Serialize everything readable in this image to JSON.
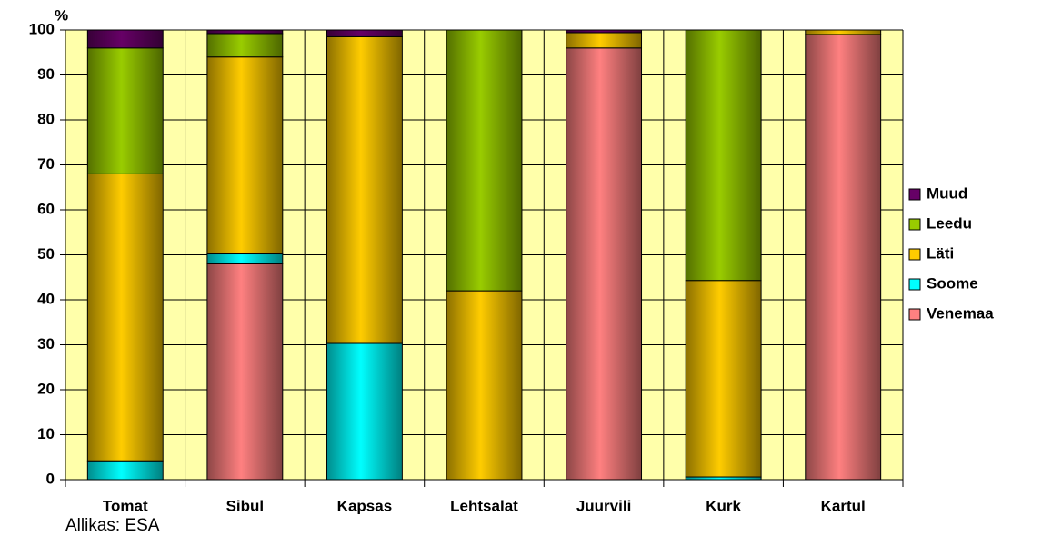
{
  "chart_data": {
    "type": "stacked_bar",
    "y_axis_label": "%",
    "source": "Allikas: ESA",
    "categories": [
      "Tomat",
      "Sibul",
      "Kapsas",
      "Lehtsalat",
      "Juurvili",
      "Kurk",
      "Kartul"
    ],
    "series": [
      {
        "name": "Venemaa",
        "color": "#ff8080",
        "values": [
          0,
          48,
          0,
          0,
          96,
          0,
          99
        ]
      },
      {
        "name": "Soome",
        "color": "#00ffff",
        "values": [
          4.2,
          2.2,
          30.3,
          0,
          0,
          0.6,
          0
        ]
      },
      {
        "name": "Läti",
        "color": "#ffcc00",
        "values": [
          63.8,
          43.8,
          68.2,
          42,
          3.4,
          43.7,
          1
        ]
      },
      {
        "name": "Leedu",
        "color": "#99cc00",
        "values": [
          28,
          5.2,
          0,
          58,
          0,
          55.7,
          0
        ]
      },
      {
        "name": "Muud",
        "color": "#660066",
        "values": [
          4,
          0.8,
          1.5,
          0,
          0.6,
          0,
          0
        ]
      }
    ],
    "ylim": [
      0,
      100
    ],
    "yticks": [
      0,
      10,
      20,
      30,
      40,
      50,
      60,
      70,
      80,
      90,
      100
    ],
    "grid": true,
    "legend": "right",
    "plot_background": "#ffffaa"
  }
}
